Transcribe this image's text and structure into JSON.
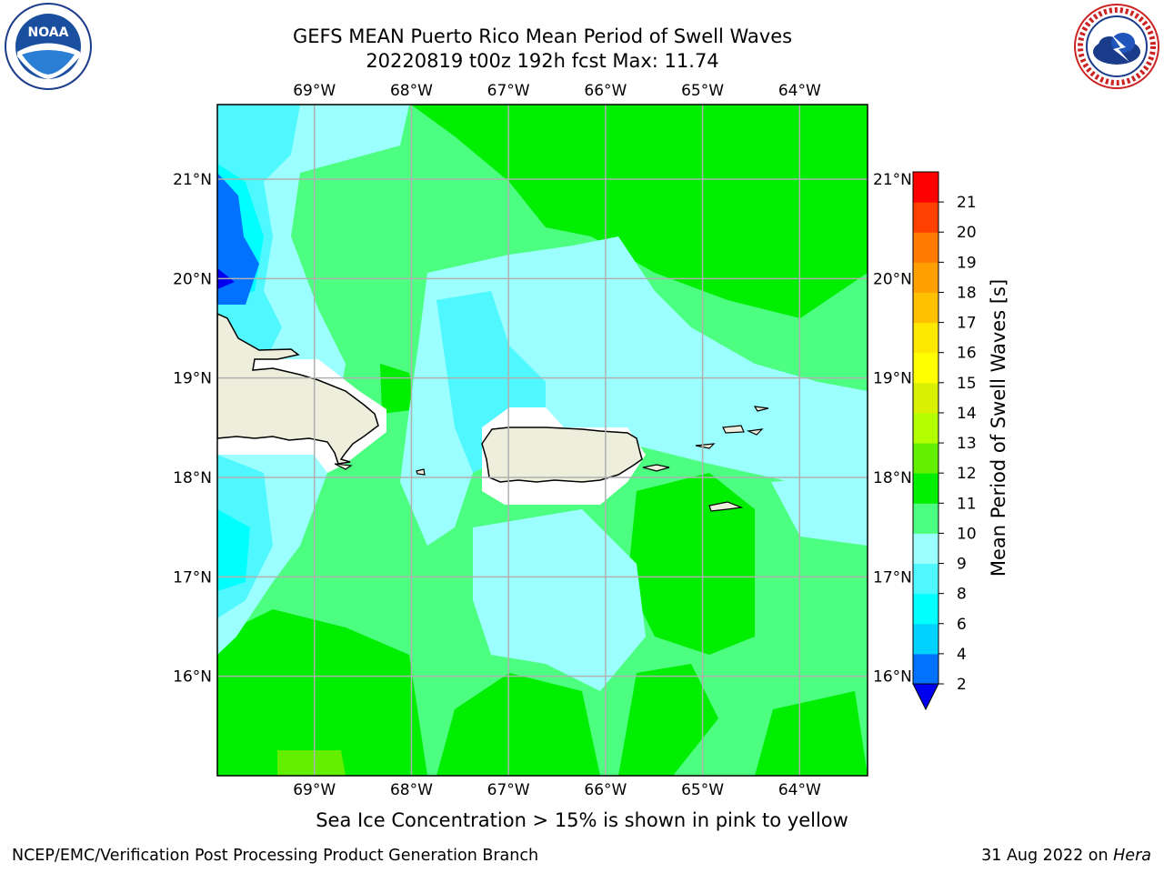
{
  "title": {
    "line1": "GEFS MEAN Puerto Rico Mean Period of Swell Waves",
    "line2": "20220819 t00z 192h fcst   Max: 11.74"
  },
  "logos": {
    "left": {
      "icon": "noaa-logo-icon",
      "text": "NOAA"
    },
    "right": {
      "icon": "nws-logo-icon",
      "text": "NATIONAL WEATHER SERVICE"
    }
  },
  "map": {
    "lon_labels": [
      "69°W",
      "68°W",
      "67°W",
      "66°W",
      "65°W",
      "64°W"
    ],
    "lat_labels": [
      "21°N",
      "20°N",
      "19°N",
      "18°N",
      "17°N",
      "16°N"
    ],
    "lon_values": [
      -69,
      -68,
      -67,
      -66,
      -65,
      -64
    ],
    "lat_values": [
      21,
      20,
      19,
      18,
      17,
      16
    ],
    "lon_range": [
      -70.0,
      -63.3
    ],
    "lat_range": [
      15.0,
      21.75
    ],
    "land_color": "#eeeedd",
    "gridline_color": "#b0b0b0"
  },
  "colorbar": {
    "label": "Mean Period of Swell Waves [s]",
    "ticks": [
      "21",
      "20",
      "19",
      "18",
      "17",
      "16",
      "15",
      "14",
      "13",
      "12",
      "11",
      "10",
      "9",
      "8",
      "6",
      "4",
      "2"
    ],
    "levels": [
      2,
      4,
      6,
      8,
      9,
      10,
      11,
      12,
      13,
      14,
      15,
      16,
      17,
      18,
      19,
      20,
      21
    ],
    "colors": [
      "#0072ff",
      "#00d2ff",
      "#00ffff",
      "#4ff7ff",
      "#9cffff",
      "#4dff80",
      "#00ee00",
      "#63f000",
      "#b3ff00",
      "#d9f000",
      "#ffff00",
      "#ffe800",
      "#ffc000",
      "#ffa000",
      "#ff7a00",
      "#ff4000",
      "#ff0000"
    ],
    "under_color": "#0000ee"
  },
  "caption": "Sea Ice Concentration > 15% is shown in pink to yellow",
  "footer": {
    "left": "NCEP/EMC/Verification Post Processing Product Generation Branch",
    "date": "31 Aug 2022 on ",
    "machine": "Hera"
  }
}
